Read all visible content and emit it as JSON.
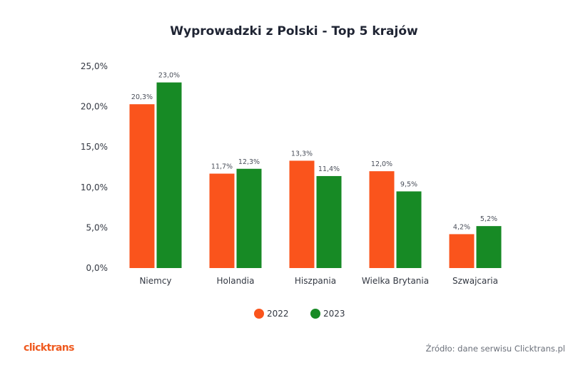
{
  "brand": "clicktrans",
  "source": "Źródło: dane serwisu Clicktrans.pl",
  "colors": {
    "2022": "#fa541c",
    "2023": "#178a25",
    "axis_text": "#333842",
    "label_text": "#4a4f5a"
  },
  "chart_data": {
    "type": "bar",
    "title": "Wyprowadzki z Polski - Top 5 krajów",
    "categories": [
      "Niemcy",
      "Holandia",
      "Hiszpania",
      "Wielka Brytania",
      "Szwajcaria"
    ],
    "series": [
      {
        "name": "2022",
        "color": "#fa541c",
        "values": [
          20.3,
          11.7,
          13.3,
          12.0,
          4.2
        ],
        "labels": [
          "20,3%",
          "11,7%",
          "13,3%",
          "12,0%",
          "4,2%"
        ]
      },
      {
        "name": "2023",
        "color": "#178a25",
        "values": [
          23.0,
          12.3,
          11.4,
          9.5,
          5.2
        ],
        "labels": [
          "23,0%",
          "12,3%",
          "11,4%",
          "9,5%",
          "5,2%"
        ]
      }
    ],
    "yticks": [
      0,
      5,
      10,
      15,
      20,
      25
    ],
    "ytick_labels": [
      "0,0%",
      "5,0%",
      "10,0%",
      "15,0%",
      "20,0%",
      "25,0%"
    ],
    "ylim": [
      0,
      25
    ],
    "grid": false,
    "legend": "bottom-center",
    "xlabel": "",
    "ylabel": ""
  }
}
